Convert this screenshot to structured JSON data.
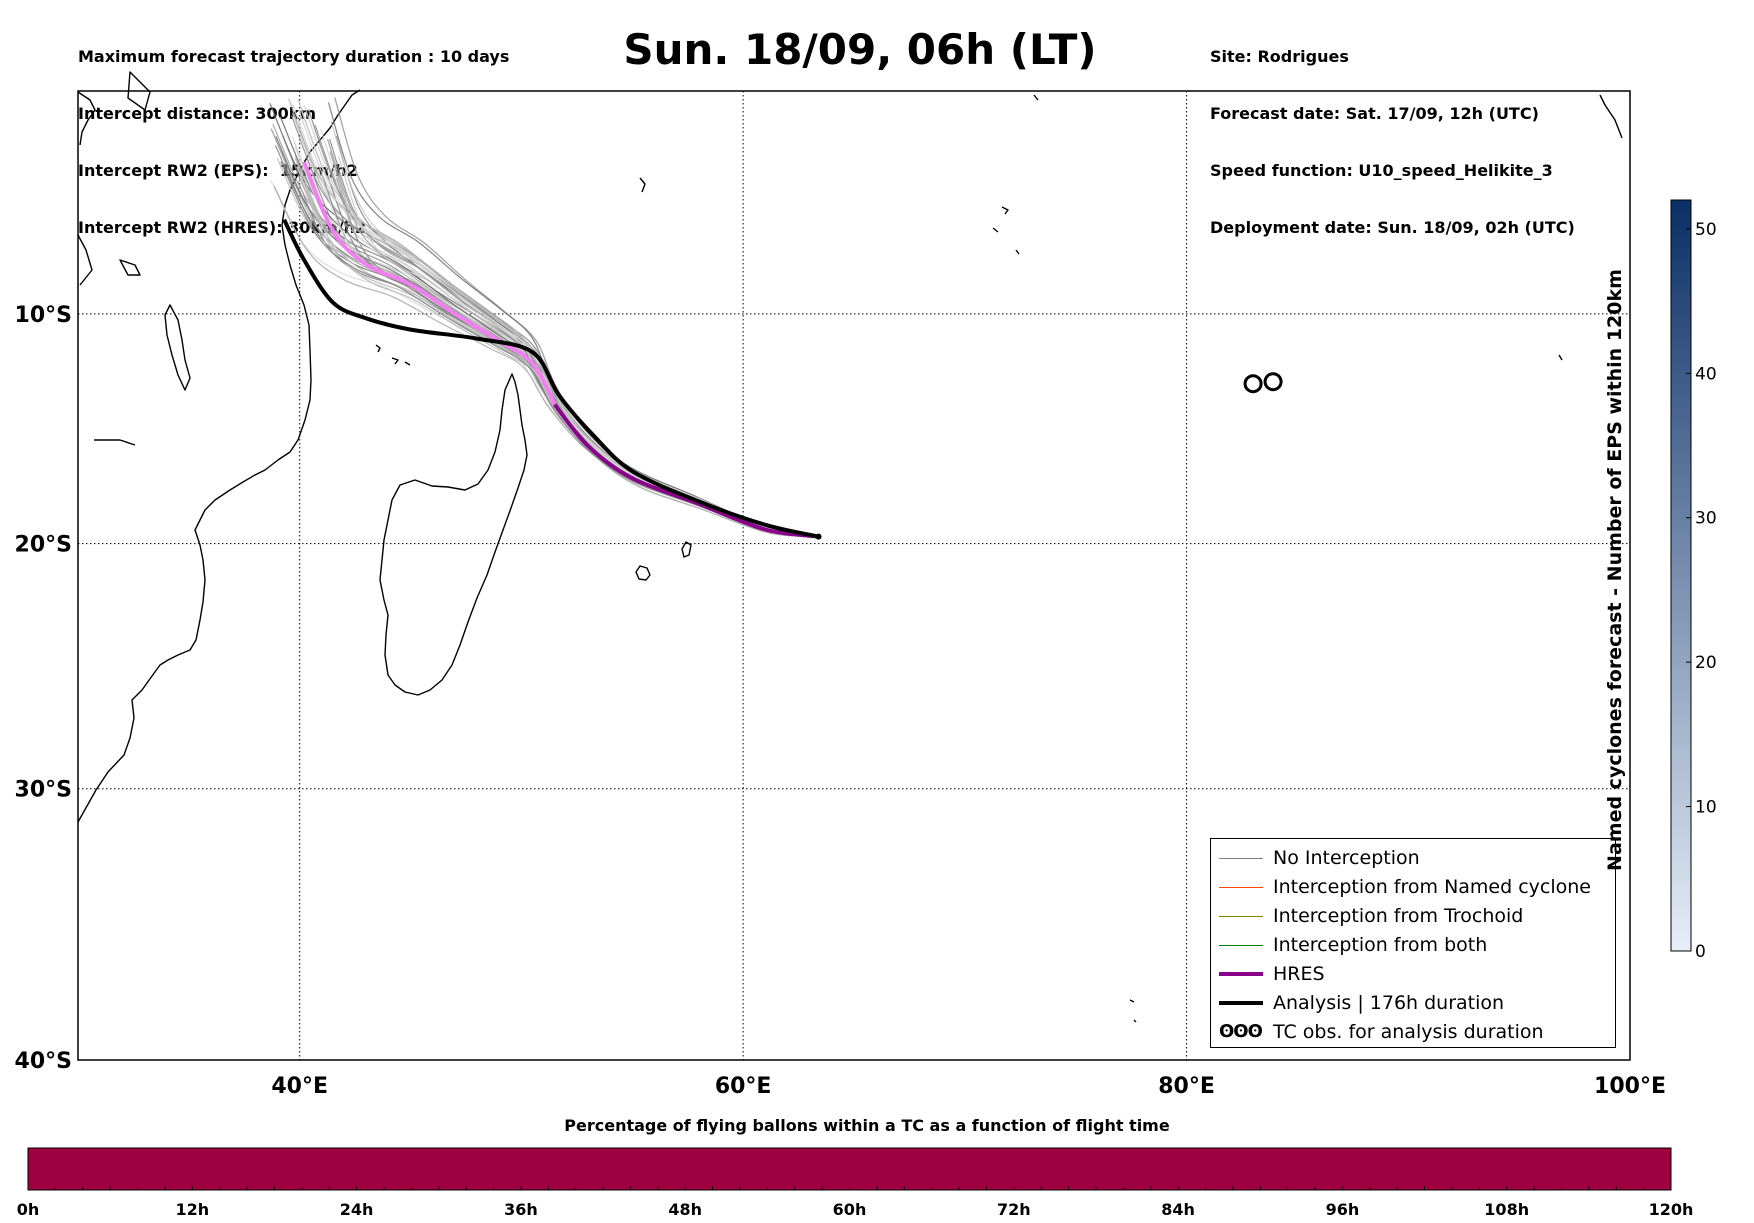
{
  "header": {
    "left_lines": [
      "Maximum forecast trajectory duration : 10 days",
      "Intercept distance: 300km",
      "Intercept RW2 (EPS):  15km/h2",
      "Intercept RW2 (HRES): 30km/h2"
    ],
    "title": "Sun. 18/09, 06h (LT)",
    "right_lines": [
      "Site: Rodrigues",
      "Forecast date: Sat. 17/09, 12h (UTC)",
      "Speed function: U10_speed_Helikite_3",
      "Deployment date: Sun. 18/09, 02h (UTC)"
    ]
  },
  "map": {
    "lon_range": [
      30,
      100
    ],
    "lat_range": [
      -40,
      0
    ],
    "lon_ticks": [
      {
        "value": 40,
        "label": "40°E"
      },
      {
        "value": 60,
        "label": "60°E"
      },
      {
        "value": 80,
        "label": "80°E"
      },
      {
        "value": 100,
        "label": "100°E"
      }
    ],
    "lat_ticks": [
      {
        "value": -10,
        "label": "10°S"
      },
      {
        "value": -20,
        "label": "20°S"
      },
      {
        "value": -30,
        "label": "30°S"
      },
      {
        "value": -40,
        "label": "40°S"
      }
    ],
    "gridlines": true,
    "coastlines": true,
    "tc_obs": {
      "lon": 83.0,
      "lat": -13.0
    }
  },
  "trajectories": {
    "deployment_site": {
      "lon": 63.4,
      "lat": -19.7
    },
    "hres_path": [
      [
        63.4,
        -19.7
      ],
      [
        61,
        -19.4
      ],
      [
        58,
        -18.3
      ],
      [
        55,
        -17.2
      ],
      [
        53,
        -15.8
      ],
      [
        51.5,
        -14.0
      ],
      [
        50.5,
        -12.2
      ],
      [
        49,
        -11.2
      ],
      [
        47,
        -10.0
      ],
      [
        45,
        -8.7
      ],
      [
        43,
        -7.8
      ],
      [
        41.5,
        -6.3
      ],
      [
        40.2,
        -3.2
      ]
    ],
    "analysis_path": [
      [
        63.4,
        -19.7
      ],
      [
        61,
        -19.2
      ],
      [
        58,
        -18.2
      ],
      [
        55,
        -16.9
      ],
      [
        53.2,
        -15.3
      ],
      [
        51.7,
        -13.6
      ],
      [
        50.5,
        -11.7
      ],
      [
        48,
        -11.1
      ],
      [
        45,
        -10.7
      ],
      [
        43,
        -10.2
      ],
      [
        41.5,
        -9.5
      ],
      [
        40.2,
        -7.6
      ],
      [
        39.3,
        -5.8
      ]
    ],
    "color_hres": "#8b008b",
    "color_hres_light": "#f27ff2",
    "color_analysis": "#000000",
    "color_no_interception": "#808080"
  },
  "legend": {
    "items": [
      {
        "label": "No Interception",
        "color": "#808080",
        "width": 1
      },
      {
        "label": "Interception from Named cyclone",
        "color": "#ff4500",
        "width": 1
      },
      {
        "label": "Interception from Trochoid",
        "color": "#808000",
        "width": 1
      },
      {
        "label": "Interception from both",
        "color": "#008000",
        "width": 1
      },
      {
        "label": "HRES",
        "color": "#8b008b",
        "width": 4
      },
      {
        "label": "Analysis | 176h duration",
        "color": "#000000",
        "width": 4
      },
      {
        "label": "TC obs. for analysis duration",
        "glyph": "ʘʘʘ"
      }
    ]
  },
  "colorbar_vertical": {
    "label": "Named cyclones forecast - Number of EPS within 120km",
    "range": [
      0,
      52
    ],
    "ticks": [
      "0",
      "10",
      "20",
      "30",
      "40",
      "50"
    ],
    "color_low": "#e6eef8",
    "color_high": "#0b2f66"
  },
  "colorbar_horizontal": {
    "title": "Percentage of flying ballons within a TC as a function of flight time",
    "ticks": [
      "0h",
      "12h",
      "24h",
      "36h",
      "48h",
      "60h",
      "72h",
      "84h",
      "96h",
      "108h",
      "120h"
    ],
    "fill_color": "#9e0040"
  }
}
